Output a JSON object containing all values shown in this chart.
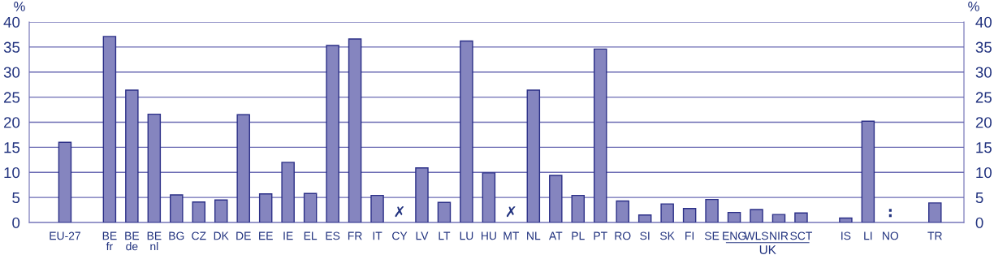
{
  "chart_data": {
    "type": "bar",
    "ylabel": "%",
    "y2label": "%",
    "categories": [
      "EU-27",
      null,
      "BE\nfr",
      "BE\nde",
      "BE\nnl",
      "BG",
      "CZ",
      "DK",
      "DE",
      "EE",
      "IE",
      "EL",
      "ES",
      "FR",
      "IT",
      "CY",
      "LV",
      "LT",
      "LU",
      "HU",
      "MT",
      "NL",
      "AT",
      "PL",
      "PT",
      "RO",
      "SI",
      "SK",
      "FI",
      "SE",
      "ENG",
      "WLS",
      "NIR",
      "SCT",
      null,
      "IS",
      "LI",
      "NO",
      null,
      "TR"
    ],
    "values": [
      16.0,
      null,
      37.1,
      26.4,
      21.6,
      5.5,
      4.1,
      4.5,
      21.5,
      5.7,
      12.0,
      5.8,
      35.3,
      36.6,
      5.4,
      null,
      10.9,
      4.0,
      36.2,
      9.9,
      null,
      26.4,
      9.4,
      5.4,
      34.6,
      4.3,
      1.5,
      3.7,
      2.8,
      4.6,
      2.0,
      2.6,
      1.6,
      1.9,
      null,
      0.9,
      20.2,
      null,
      null,
      3.9
    ],
    "color": "#8585bf",
    "ylim": [
      0,
      40
    ],
    "yticks": [
      0,
      5,
      10,
      15,
      20,
      25,
      30,
      35,
      40
    ],
    "y2lim": [
      0,
      40
    ],
    "y2ticks": [
      0,
      5,
      10,
      15,
      20,
      25,
      30,
      35,
      40
    ],
    "value_labels": [
      null,
      null,
      null,
      null,
      null,
      null,
      null,
      null,
      null,
      null,
      null,
      null,
      null,
      null,
      null,
      "✗",
      null,
      null,
      null,
      null,
      "✗",
      null,
      null,
      null,
      null,
      null,
      null,
      null,
      null,
      null,
      null,
      null,
      null,
      null,
      null,
      null,
      null,
      ":",
      null,
      null
    ],
    "grid": "y",
    "annotations": [
      "UK"
    ]
  }
}
